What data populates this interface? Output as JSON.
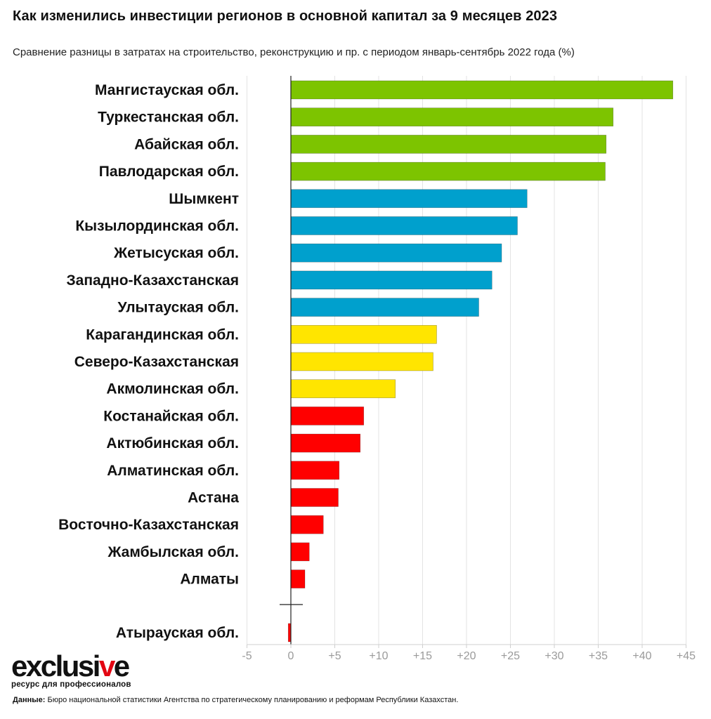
{
  "chart_data": {
    "type": "bar",
    "orientation": "horizontal",
    "title": "Как изменились инвестиции регионов в основной капитал за 9 месяцев 2023",
    "subtitle": "Сравнение разницы в затратах на строительство, реконструкцию и пр. с периодом январь-сентябрь 2022 года (%)",
    "xlabel": "",
    "ylabel": "",
    "xlim": [
      -5,
      45
    ],
    "xticks": [
      -5,
      0,
      5,
      10,
      15,
      20,
      25,
      30,
      35,
      40,
      45
    ],
    "xtick_labels": [
      "-5",
      "0",
      "+5",
      "+10",
      "+15",
      "+20",
      "+25",
      "+30",
      "+35",
      "+40",
      "+45"
    ],
    "grid": true,
    "categories": [
      "Мангистауская обл.",
      "Туркестанская обл.",
      "Абайская обл.",
      "Павлодарская обл.",
      "Шымкент",
      "Кызылординская обл.",
      "Жетысуская обл.",
      "Западно-Казахстанская",
      "Улытауская обл.",
      "Карагандинская обл.",
      "Северо-Казахстанская",
      "Акмолинская обл.",
      "Костанайская обл.",
      "Актюбинская обл.",
      "Алматинская обл.",
      "Астана",
      "Восточно-Казахстанская",
      "Жамбылская обл.",
      "Алматы",
      "Атырауская обл."
    ],
    "values": [
      43.5,
      36.7,
      35.9,
      35.8,
      26.9,
      25.8,
      24.0,
      22.9,
      21.4,
      16.6,
      16.2,
      11.9,
      8.3,
      7.9,
      5.5,
      5.4,
      3.7,
      2.1,
      1.6,
      -0.3
    ],
    "groups": [
      0,
      0,
      0,
      0,
      1,
      1,
      1,
      1,
      1,
      2,
      2,
      2,
      3,
      3,
      3,
      3,
      3,
      3,
      3,
      3
    ],
    "group_colors": [
      "#7dc400",
      "#00a0cd",
      "#ffe500",
      "#ff0000"
    ]
  },
  "branding": {
    "logo_prefix": "exclusi",
    "logo_accent": "v",
    "logo_suffix": "e",
    "tagline": "ресурс для профессионалов"
  },
  "footer": {
    "source_label": "Данные:",
    "source_text": "Бюро национальной статистики Агентства по стратегическому планированию и реформам Республики Казахстан."
  }
}
